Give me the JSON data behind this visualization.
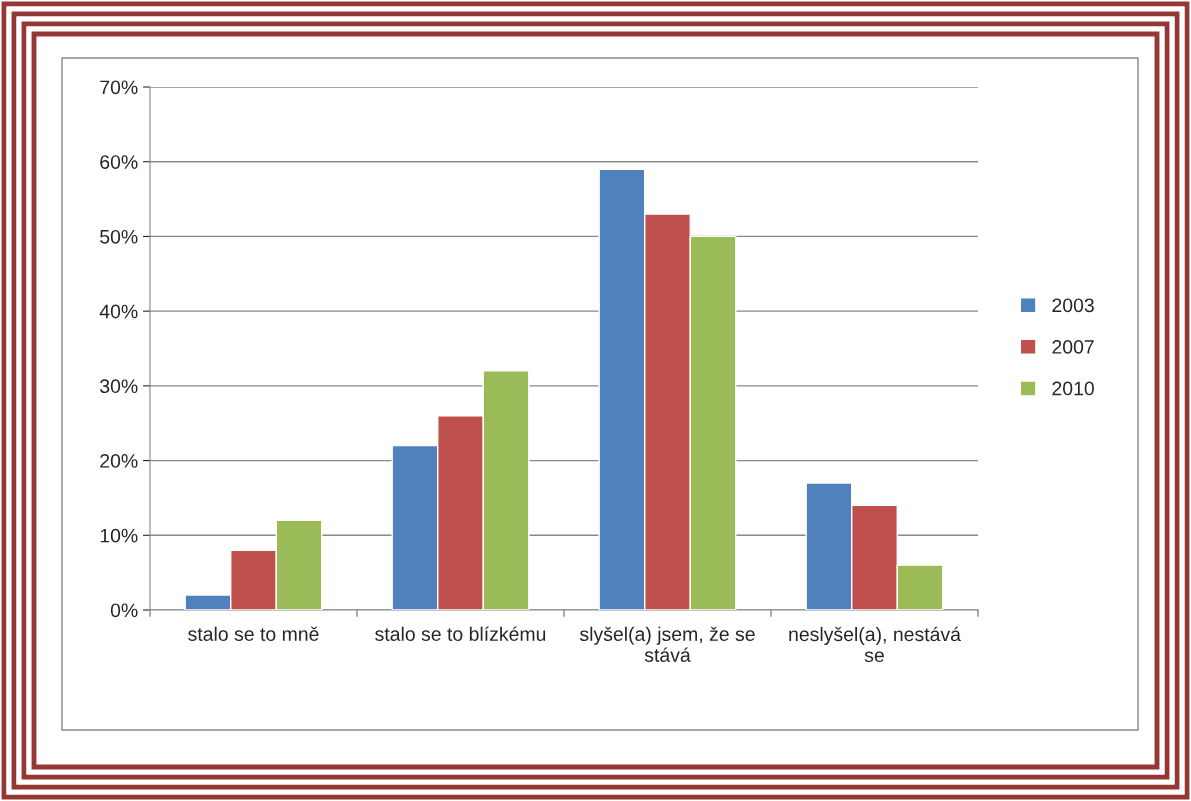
{
  "chart_data": {
    "type": "bar",
    "categories": [
      "stalo se to mně",
      "stalo se to blízkému",
      "slyšel(a) jsem, že se stává",
      "neslyšel(a), nestává se"
    ],
    "series": [
      {
        "name": "2003",
        "color": "#4f81bd",
        "values": [
          2,
          22,
          59,
          17
        ]
      },
      {
        "name": "2007",
        "color": "#c0504d",
        "values": [
          8,
          26,
          53,
          14
        ]
      },
      {
        "name": "2010",
        "color": "#9bbb59",
        "values": [
          12,
          32,
          50,
          6
        ]
      }
    ],
    "ylim": [
      0,
      70
    ],
    "yticks": [
      {
        "value": 0,
        "label": "0%"
      },
      {
        "value": 10,
        "label": "10%"
      },
      {
        "value": 20,
        "label": "20%"
      },
      {
        "value": 30,
        "label": "30%"
      },
      {
        "value": 40,
        "label": "40%"
      },
      {
        "value": 50,
        "label": "50%"
      },
      {
        "value": 60,
        "label": "60%"
      },
      {
        "value": 70,
        "label": "70%"
      }
    ],
    "grid": "y",
    "legend": "right"
  }
}
